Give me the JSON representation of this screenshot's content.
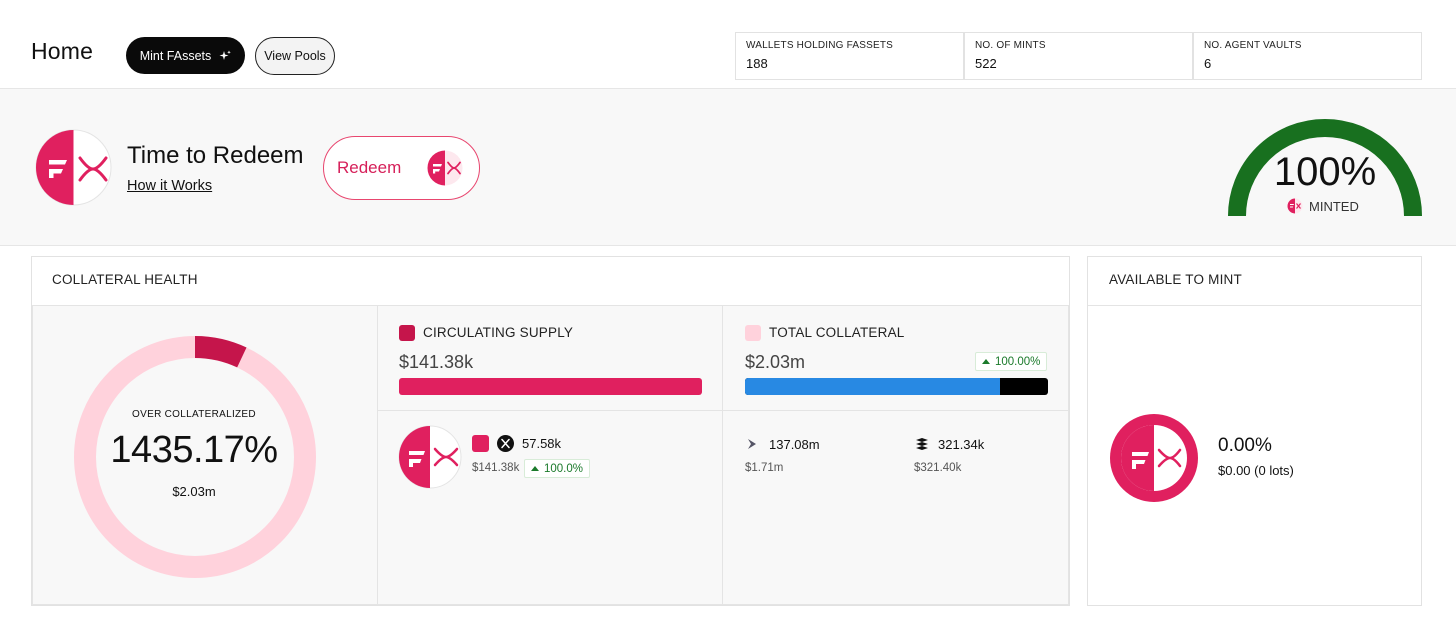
{
  "header": {
    "title": "Home",
    "mint_button": "Mint FAssets",
    "pools_button": "View Pools",
    "stats": [
      {
        "label": "WALLETS HOLDING FASSETS",
        "value": "188"
      },
      {
        "label": "NO. OF MINTS",
        "value": "522"
      },
      {
        "label": "NO. AGENT VAULTS",
        "value": "6"
      }
    ]
  },
  "redeem": {
    "title": "Time to Redeem",
    "link": "How it Works",
    "button": "Redeem"
  },
  "minted_gauge": {
    "percent": "100%",
    "label": "MINTED",
    "fill_fraction": 1.0
  },
  "collateral_health": {
    "title": "COLLATERAL HEALTH",
    "donut": {
      "label": "OVER COLLATERALIZED",
      "percent": "1435.17%",
      "amount": "$2.03m",
      "minted_share_fraction": 0.07
    },
    "circulating_supply": {
      "label": "CIRCULATING SUPPLY",
      "amount": "$141.38k",
      "bar_fraction": 1.0
    },
    "total_collateral": {
      "label": "TOTAL COLLATERAL",
      "amount": "$2.03m",
      "change": "100.00%",
      "bar_primary_fraction": 0.84
    },
    "fxrp_asset": {
      "amount": "57.58k",
      "usd": "$141.38k",
      "change": "100.0%"
    },
    "collateral_assets": [
      {
        "icon": "flare-icon",
        "amount": "137.08m",
        "usd": "$1.71m"
      },
      {
        "icon": "usdc-icon",
        "amount": "321.34k",
        "usd": "$321.40k"
      }
    ]
  },
  "available_to_mint": {
    "title": "AVAILABLE TO MINT",
    "percent": "0.00%",
    "amount": "$0.00 (0 lots)"
  },
  "colors": {
    "brand_pink": "#e0205f",
    "light_pink": "#ffd2dc",
    "dark_pink": "#c5154b",
    "gauge_green": "#18701f",
    "collateral_blue": "#2889e3"
  }
}
